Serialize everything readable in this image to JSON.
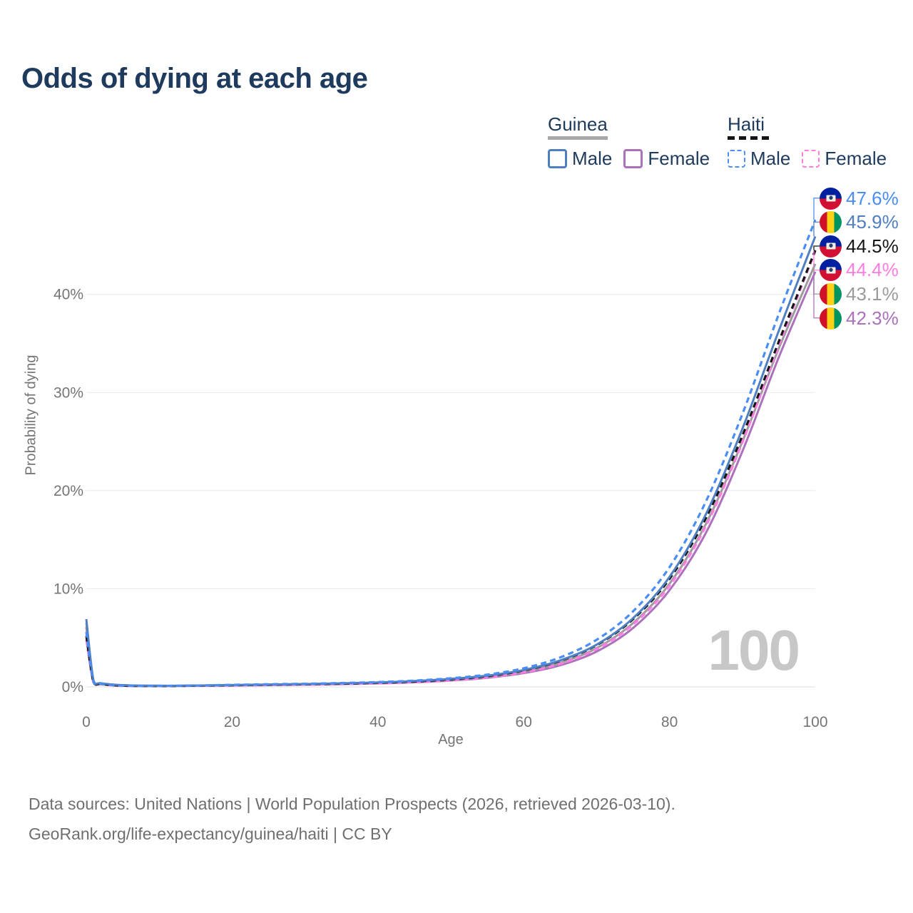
{
  "title": "Odds of dying at each age",
  "watermark": {
    "age_counter": "100"
  },
  "legend": {
    "groups": [
      {
        "name": "Guinea",
        "style": "solid",
        "items": [
          {
            "label": "Male",
            "series": "guinea_male"
          },
          {
            "label": "Female",
            "series": "guinea_female"
          }
        ]
      },
      {
        "name": "Haiti",
        "style": "dashed",
        "items": [
          {
            "label": "Male",
            "series": "haiti_male"
          },
          {
            "label": "Female",
            "series": "haiti_female"
          }
        ]
      }
    ]
  },
  "axes": {
    "x": {
      "title": "Age",
      "ticks": [
        "0",
        "20",
        "40",
        "60",
        "80",
        "100"
      ],
      "tick_values": [
        0,
        20,
        40,
        60,
        80,
        100
      ]
    },
    "y": {
      "title": "Probability of dying",
      "ticks": [
        "0%",
        "10%",
        "20%",
        "30%",
        "40%"
      ],
      "tick_values": [
        0,
        10,
        20,
        30,
        40
      ]
    }
  },
  "colors": {
    "title_text": "#1e3a5c",
    "axis_text": "#757575",
    "grid": "#e9e9e9",
    "baseline": "#dcdcdc",
    "watermark": "#c7c7c7",
    "footer_text": "#6f6f6f",
    "guinea_underline": "#a8a8a8",
    "haiti_underline": "#141414"
  },
  "footer": {
    "line1": "Data sources: United Nations | World Population Prospects (2026, retrieved 2026-03-10).",
    "line2": "GeoRank.org/life-expectancy/guinea/haiti | CC BY"
  },
  "chart_data": {
    "type": "line",
    "title": "Odds of dying at each age",
    "xlabel": "Age",
    "ylabel": "Probability of dying",
    "unit": "%",
    "xlim": [
      0,
      100
    ],
    "ylim": [
      0,
      50
    ],
    "grid": "horizontal",
    "legend_position": "top-right",
    "x": [
      0,
      1,
      2,
      5,
      10,
      15,
      20,
      25,
      30,
      35,
      40,
      45,
      50,
      55,
      60,
      65,
      70,
      75,
      80,
      85,
      90,
      95,
      100
    ],
    "series": [
      {
        "id": "haiti_male",
        "name": "Haiti — Male",
        "country": "Haiti",
        "sex": "male",
        "flag": "haiti",
        "dashed": true,
        "color": "#4a8df5",
        "end_label": "47.6%",
        "values": [
          5.6,
          0.48,
          0.3,
          0.13,
          0.1,
          0.14,
          0.21,
          0.27,
          0.32,
          0.39,
          0.49,
          0.64,
          0.88,
          1.25,
          1.9,
          3.0,
          4.8,
          7.7,
          12.2,
          18.9,
          27.8,
          38.0,
          47.6
        ]
      },
      {
        "id": "guinea_male",
        "name": "Guinea — Male",
        "country": "Guinea",
        "sex": "male",
        "flag": "guinea",
        "dashed": false,
        "color": "#4f7fc1",
        "end_label": "45.9%",
        "values": [
          6.9,
          0.62,
          0.38,
          0.18,
          0.12,
          0.14,
          0.19,
          0.24,
          0.29,
          0.36,
          0.46,
          0.6,
          0.82,
          1.15,
          1.72,
          2.7,
          4.3,
          7.0,
          11.2,
          17.6,
          26.3,
          36.3,
          45.9
        ]
      },
      {
        "id": "haiti_all",
        "name": "Haiti — Both sexes",
        "country": "Haiti",
        "sex": "all",
        "flag": "haiti",
        "dashed": true,
        "color": "#161616",
        "end_label": "44.5%",
        "values": [
          5.2,
          0.45,
          0.28,
          0.12,
          0.09,
          0.12,
          0.17,
          0.22,
          0.27,
          0.33,
          0.42,
          0.55,
          0.77,
          1.1,
          1.68,
          2.65,
          4.25,
          6.9,
          11.0,
          17.2,
          25.6,
          35.2,
          44.5
        ]
      },
      {
        "id": "haiti_female",
        "name": "Haiti — Female",
        "country": "Haiti",
        "sex": "female",
        "flag": "haiti",
        "dashed": true,
        "color": "#ff7de2",
        "end_label": "44.4%",
        "values": [
          4.8,
          0.42,
          0.26,
          0.11,
          0.085,
          0.11,
          0.145,
          0.18,
          0.23,
          0.28,
          0.36,
          0.47,
          0.66,
          0.96,
          1.48,
          2.35,
          3.85,
          6.35,
          10.3,
          16.4,
          24.9,
          34.8,
          44.4
        ]
      },
      {
        "id": "guinea_all",
        "name": "Guinea — Both sexes",
        "country": "Guinea",
        "sex": "all",
        "flag": "guinea",
        "dashed": false,
        "color": "#9b9b9b",
        "end_label": "43.1%",
        "values": [
          6.5,
          0.57,
          0.35,
          0.16,
          0.11,
          0.125,
          0.165,
          0.21,
          0.26,
          0.32,
          0.41,
          0.53,
          0.73,
          1.04,
          1.56,
          2.45,
          3.95,
          6.5,
          10.5,
          16.6,
          25.0,
          34.5,
          43.1
        ]
      },
      {
        "id": "guinea_female",
        "name": "Guinea — Female",
        "country": "Guinea",
        "sex": "female",
        "flag": "guinea",
        "dashed": false,
        "color": "#ab72bb",
        "end_label": "42.3%",
        "values": [
          6.1,
          0.52,
          0.32,
          0.145,
          0.1,
          0.11,
          0.14,
          0.18,
          0.225,
          0.28,
          0.355,
          0.465,
          0.645,
          0.93,
          1.4,
          2.2,
          3.6,
          6.0,
          9.85,
          15.7,
          24.0,
          33.6,
          42.3
        ]
      }
    ]
  }
}
